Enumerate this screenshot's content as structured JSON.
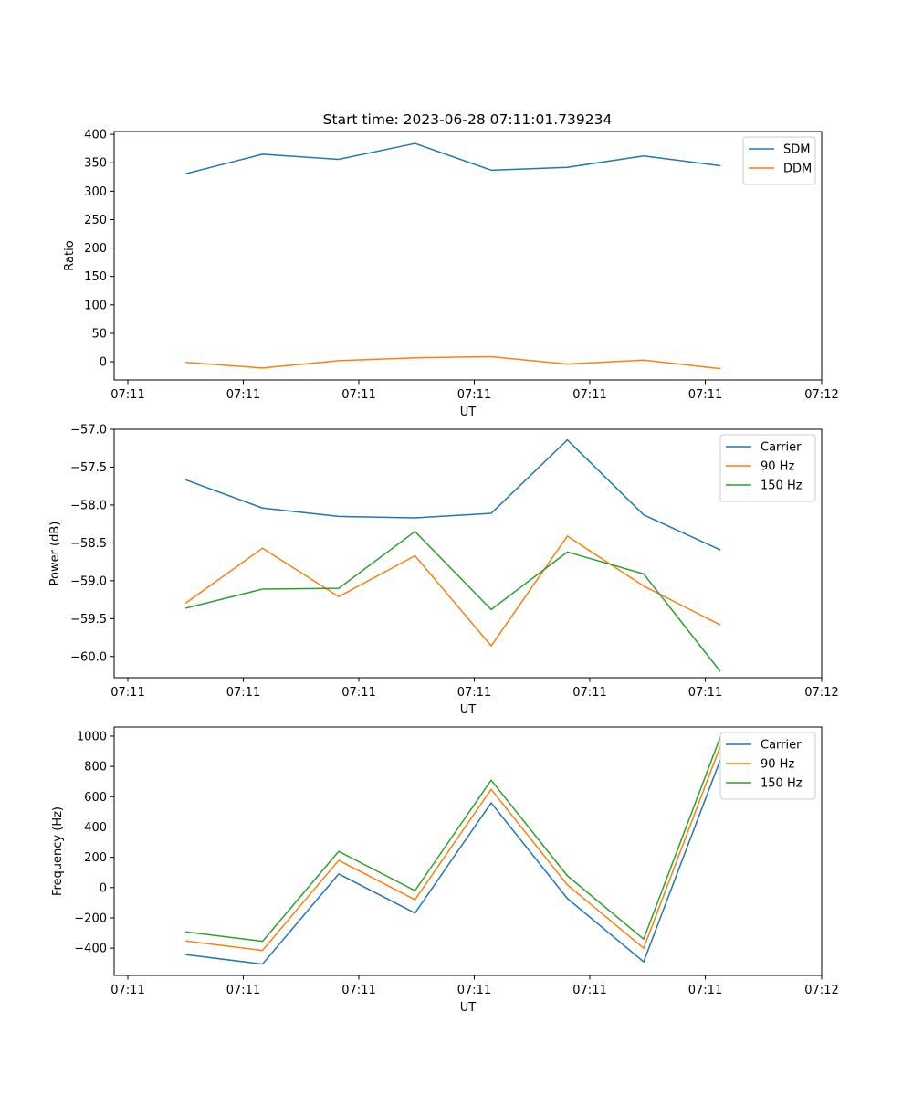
{
  "figure": {
    "title": "Start time: 2023-06-28 07:11:01.739234"
  },
  "chart_data": [
    {
      "type": "line",
      "ylabel": "Ratio",
      "xlabel": "UT",
      "x_tick_labels": [
        "07:11",
        "07:11",
        "07:11",
        "07:11",
        "07:11",
        "07:11",
        "07:12"
      ],
      "ylim": [
        -32,
        405
      ],
      "y_ticks": [
        0,
        50,
        100,
        150,
        200,
        250,
        300,
        350,
        400
      ],
      "grid": false,
      "legend": "upper-right",
      "colors": [
        "#1f77b4",
        "#ff7f0e"
      ],
      "series": [
        {
          "name": "SDM",
          "values": [
            331,
            365,
            356,
            384,
            337,
            342,
            362,
            345
          ]
        },
        {
          "name": "DDM",
          "values": [
            -1,
            -11,
            2,
            7,
            9,
            -4,
            3,
            -12
          ]
        }
      ]
    },
    {
      "type": "line",
      "ylabel": "Power (dB)",
      "xlabel": "UT",
      "x_tick_labels": [
        "07:11",
        "07:11",
        "07:11",
        "07:11",
        "07:11",
        "07:11",
        "07:12"
      ],
      "ylim": [
        -60.28,
        -57.0
      ],
      "y_ticks": [
        -60.0,
        -59.5,
        -59.0,
        -58.5,
        -58.0,
        -57.5,
        -57.0
      ],
      "y_tick_labels": [
        "−60.0",
        "−59.5",
        "−59.0",
        "−58.5",
        "−58.0",
        "−57.5",
        "−57.0"
      ],
      "grid": false,
      "legend": "upper-right",
      "colors": [
        "#1f77b4",
        "#ff7f0e",
        "#2ca02c"
      ],
      "series": [
        {
          "name": "Carrier",
          "values": [
            -57.67,
            -58.04,
            -58.15,
            -58.17,
            -58.11,
            -57.14,
            -58.13,
            -58.59
          ]
        },
        {
          "name": "90 Hz",
          "values": [
            -59.29,
            -58.57,
            -59.21,
            -58.67,
            -59.86,
            -58.41,
            -59.07,
            -59.58
          ]
        },
        {
          "name": "150 Hz",
          "values": [
            -59.36,
            -59.11,
            -59.1,
            -58.35,
            -59.38,
            -58.62,
            -58.91,
            -60.19
          ]
        }
      ]
    },
    {
      "type": "line",
      "ylabel": "Frequency (Hz)",
      "xlabel": "UT",
      "x_tick_labels": [
        "07:11",
        "07:11",
        "07:11",
        "07:11",
        "07:11",
        "07:11",
        "07:12"
      ],
      "ylim": [
        -580,
        1060
      ],
      "y_ticks": [
        -400,
        -200,
        0,
        200,
        400,
        600,
        800,
        1000
      ],
      "y_tick_labels": [
        "−400",
        "−200",
        "0",
        "200",
        "400",
        "600",
        "800",
        "1000"
      ],
      "grid": false,
      "legend": "upper-right",
      "colors": [
        "#1f77b4",
        "#ff7f0e",
        "#2ca02c"
      ],
      "series": [
        {
          "name": "Carrier",
          "values": [
            -443,
            -505,
            90,
            -168,
            559,
            -72,
            -490,
            836
          ]
        },
        {
          "name": "90 Hz",
          "values": [
            -353,
            -415,
            180,
            -80,
            649,
            18,
            -400,
            926
          ]
        },
        {
          "name": "150 Hz",
          "values": [
            -293,
            -355,
            239,
            -20,
            709,
            78,
            -340,
            986
          ]
        }
      ]
    }
  ]
}
